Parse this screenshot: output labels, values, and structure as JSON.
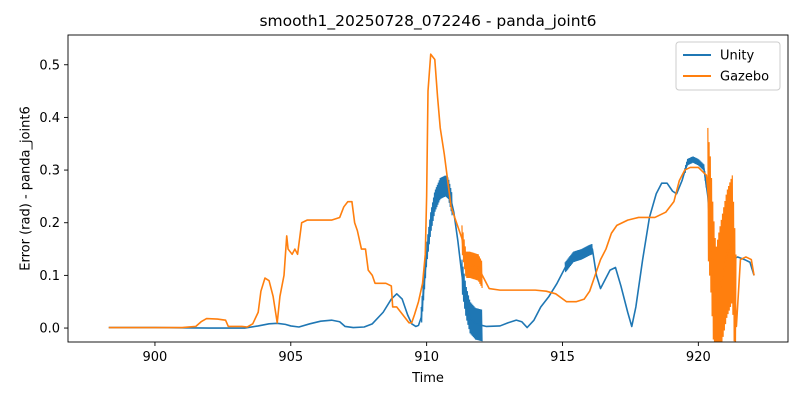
{
  "chart_data": {
    "type": "line",
    "title": "smooth1_20250728_072246 - panda_joint6",
    "xlabel": "Time",
    "ylabel": "Error (rad) - panda_joint6",
    "xlim": [
      896.8,
      923.3
    ],
    "ylim": [
      -0.0265,
      0.5565
    ],
    "xticks": [
      900,
      905,
      910,
      915,
      920
    ],
    "yticks": [
      0.0,
      0.1,
      0.2,
      0.3,
      0.4,
      0.5
    ],
    "xtick_labels": [
      "900",
      "905",
      "910",
      "915",
      "920"
    ],
    "ytick_labels": [
      "0.0",
      "0.1",
      "0.2",
      "0.3",
      "0.4",
      "0.5"
    ],
    "legend_position": "upper right",
    "grid": false,
    "series": [
      {
        "name": "Unity",
        "color": "#1f77b4",
        "points": [
          [
            898.3,
            0.001
          ],
          [
            900.0,
            0.001
          ],
          [
            902.0,
            0.0
          ],
          [
            903.3,
            0.0
          ],
          [
            903.8,
            0.004
          ],
          [
            904.2,
            0.008
          ],
          [
            904.5,
            0.009
          ],
          [
            904.8,
            0.007
          ],
          [
            905.0,
            0.004
          ],
          [
            905.3,
            0.002
          ],
          [
            905.7,
            0.008
          ],
          [
            906.1,
            0.013
          ],
          [
            906.5,
            0.015
          ],
          [
            906.8,
            0.012
          ],
          [
            907.0,
            0.003
          ],
          [
            907.3,
            0.001
          ],
          [
            907.7,
            0.002
          ],
          [
            908.0,
            0.008
          ],
          [
            908.4,
            0.03
          ],
          [
            908.7,
            0.055
          ],
          [
            908.9,
            0.065
          ],
          [
            909.1,
            0.055
          ],
          [
            909.3,
            0.025
          ],
          [
            909.45,
            0.008
          ],
          [
            909.6,
            0.003
          ],
          [
            909.7,
            0.005
          ],
          [
            909.8,
            0.02
          ],
          [
            909.9,
            0.08
          ],
          [
            910.0,
            0.14
          ],
          [
            910.15,
            0.2
          ],
          [
            910.3,
            0.24
          ],
          [
            910.5,
            0.265
          ],
          [
            910.7,
            0.27
          ],
          [
            910.8,
            0.265
          ],
          [
            911.0,
            0.22
          ],
          [
            911.15,
            0.165
          ],
          [
            911.3,
            0.1
          ],
          [
            911.45,
            0.05
          ],
          [
            911.6,
            0.02
          ],
          [
            911.8,
            0.008
          ],
          [
            912.2,
            0.003
          ],
          [
            912.7,
            0.004
          ],
          [
            913.0,
            0.01
          ],
          [
            913.3,
            0.015
          ],
          [
            913.5,
            0.012
          ],
          [
            913.7,
            0.001
          ],
          [
            913.95,
            0.015
          ],
          [
            914.2,
            0.04
          ],
          [
            914.5,
            0.06
          ],
          [
            914.8,
            0.085
          ],
          [
            915.1,
            0.115
          ],
          [
            915.4,
            0.135
          ],
          [
            915.7,
            0.14
          ],
          [
            916.0,
            0.148
          ],
          [
            916.1,
            0.15
          ],
          [
            916.25,
            0.1
          ],
          [
            916.4,
            0.075
          ],
          [
            916.55,
            0.09
          ],
          [
            916.75,
            0.11
          ],
          [
            916.95,
            0.115
          ],
          [
            917.15,
            0.08
          ],
          [
            917.4,
            0.03
          ],
          [
            917.55,
            0.003
          ],
          [
            917.7,
            0.04
          ],
          [
            917.95,
            0.13
          ],
          [
            918.2,
            0.21
          ],
          [
            918.45,
            0.255
          ],
          [
            918.65,
            0.275
          ],
          [
            918.85,
            0.275
          ],
          [
            919.05,
            0.26
          ],
          [
            919.2,
            0.255
          ],
          [
            919.4,
            0.28
          ],
          [
            919.6,
            0.315
          ],
          [
            919.8,
            0.32
          ],
          [
            920.0,
            0.315
          ],
          [
            920.2,
            0.305
          ],
          [
            920.35,
            0.25
          ],
          [
            920.55,
            0.1
          ],
          [
            920.7,
            0.02
          ],
          [
            920.85,
            0.06
          ],
          [
            921.05,
            0.11
          ],
          [
            921.25,
            0.13
          ],
          [
            921.45,
            0.135
          ],
          [
            921.7,
            0.13
          ],
          [
            921.9,
            0.125
          ],
          [
            922.05,
            0.1
          ]
        ]
      },
      {
        "name": "Gazebo",
        "color": "#ff7f0e",
        "points": [
          [
            898.3,
            0.001
          ],
          [
            900.0,
            0.001
          ],
          [
            901.0,
            0.001
          ],
          [
            901.5,
            0.003
          ],
          [
            901.7,
            0.012
          ],
          [
            901.9,
            0.018
          ],
          [
            902.3,
            0.017
          ],
          [
            902.6,
            0.015
          ],
          [
            902.7,
            0.003
          ],
          [
            903.2,
            0.003
          ],
          [
            903.4,
            0.002
          ],
          [
            903.6,
            0.008
          ],
          [
            903.8,
            0.03
          ],
          [
            903.9,
            0.07
          ],
          [
            904.05,
            0.095
          ],
          [
            904.2,
            0.09
          ],
          [
            904.35,
            0.06
          ],
          [
            904.5,
            0.01
          ],
          [
            904.6,
            0.06
          ],
          [
            904.75,
            0.1
          ],
          [
            904.85,
            0.175
          ],
          [
            904.9,
            0.15
          ],
          [
            905.05,
            0.14
          ],
          [
            905.15,
            0.15
          ],
          [
            905.25,
            0.14
          ],
          [
            905.4,
            0.2
          ],
          [
            905.6,
            0.205
          ],
          [
            906.0,
            0.205
          ],
          [
            906.5,
            0.205
          ],
          [
            906.8,
            0.21
          ],
          [
            906.95,
            0.23
          ],
          [
            907.1,
            0.24
          ],
          [
            907.25,
            0.24
          ],
          [
            907.35,
            0.2
          ],
          [
            907.45,
            0.185
          ],
          [
            907.6,
            0.15
          ],
          [
            907.75,
            0.15
          ],
          [
            907.85,
            0.11
          ],
          [
            908.0,
            0.1
          ],
          [
            908.1,
            0.085
          ],
          [
            908.5,
            0.085
          ],
          [
            908.7,
            0.08
          ],
          [
            908.75,
            0.04
          ],
          [
            908.9,
            0.04
          ],
          [
            909.05,
            0.03
          ],
          [
            909.2,
            0.02
          ],
          [
            909.35,
            0.01
          ],
          [
            909.45,
            0.01
          ],
          [
            909.55,
            0.025
          ],
          [
            909.7,
            0.05
          ],
          [
            909.85,
            0.085
          ],
          [
            909.95,
            0.14
          ],
          [
            910.0,
            0.25
          ],
          [
            910.05,
            0.45
          ],
          [
            910.15,
            0.52
          ],
          [
            910.3,
            0.51
          ],
          [
            910.4,
            0.44
          ],
          [
            910.5,
            0.38
          ],
          [
            910.65,
            0.33
          ],
          [
            910.8,
            0.27
          ],
          [
            910.9,
            0.23
          ],
          [
            911.1,
            0.2
          ],
          [
            911.3,
            0.17
          ],
          [
            911.45,
            0.12
          ],
          [
            911.6,
            0.12
          ],
          [
            911.9,
            0.115
          ],
          [
            912.15,
            0.09
          ],
          [
            912.3,
            0.075
          ],
          [
            912.7,
            0.072
          ],
          [
            913.5,
            0.072
          ],
          [
            914.0,
            0.072
          ],
          [
            914.4,
            0.07
          ],
          [
            914.75,
            0.065
          ],
          [
            915.15,
            0.05
          ],
          [
            915.5,
            0.05
          ],
          [
            915.8,
            0.055
          ],
          [
            916.0,
            0.07
          ],
          [
            916.2,
            0.1
          ],
          [
            916.4,
            0.13
          ],
          [
            916.6,
            0.15
          ],
          [
            916.8,
            0.18
          ],
          [
            917.0,
            0.195
          ],
          [
            917.4,
            0.205
          ],
          [
            917.8,
            0.21
          ],
          [
            918.4,
            0.21
          ],
          [
            918.8,
            0.22
          ],
          [
            919.1,
            0.24
          ],
          [
            919.3,
            0.28
          ],
          [
            919.5,
            0.3
          ],
          [
            919.7,
            0.305
          ],
          [
            920.0,
            0.305
          ],
          [
            920.3,
            0.29
          ],
          [
            920.45,
            0.2
          ],
          [
            920.55,
            0.1
          ],
          [
            920.65,
            0.03
          ],
          [
            920.75,
            0.06
          ],
          [
            920.9,
            0.1
          ],
          [
            921.05,
            0.14
          ],
          [
            921.25,
            0.17
          ],
          [
            921.4,
            0.003
          ],
          [
            921.55,
            0.13
          ],
          [
            921.75,
            0.135
          ],
          [
            921.95,
            0.13
          ],
          [
            922.05,
            0.1
          ]
        ]
      }
    ],
    "oscillation_bands": [
      {
        "series": "Unity",
        "x0": 909.8,
        "x1": 910.95,
        "amp": 0.02,
        "period": 0.035
      },
      {
        "series": "Unity",
        "x0": 911.3,
        "x1": 912.05,
        "amp": 0.03,
        "period": 0.04
      },
      {
        "series": "Unity",
        "x0": 915.1,
        "x1": 916.1,
        "amp": 0.01,
        "period": 0.035
      },
      {
        "series": "Unity",
        "x0": 919.5,
        "x1": 920.3,
        "amp": 0.006,
        "period": 0.035
      },
      {
        "series": "Gazebo",
        "x0": 911.3,
        "x1": 912.05,
        "amp": 0.025,
        "period": 0.04
      },
      {
        "series": "Gazebo",
        "x0": 920.35,
        "x1": 921.4,
        "amp": 0.12,
        "period": 0.045
      }
    ]
  }
}
